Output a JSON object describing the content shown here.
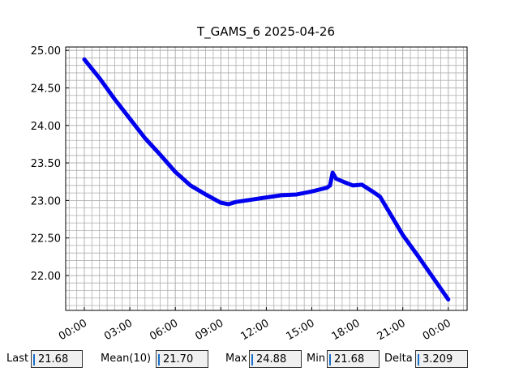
{
  "chart_data": {
    "type": "line",
    "title": "T_GAMS_6 2025-04-26",
    "x": [
      0,
      1,
      2,
      3,
      4,
      5,
      6,
      7,
      8,
      9,
      9.5,
      10,
      11,
      12,
      13,
      14,
      15,
      16,
      16.2,
      16.37,
      16.6,
      17.2,
      17.7,
      18.3,
      19,
      19.5,
      20,
      21,
      22,
      23,
      24
    ],
    "series": [
      {
        "name": "T_GAMS_6",
        "color": "#0000ee",
        "values": [
          24.88,
          24.63,
          24.35,
          24.09,
          23.83,
          23.61,
          23.38,
          23.2,
          23.08,
          22.97,
          22.95,
          22.98,
          23.01,
          23.04,
          23.07,
          23.08,
          23.12,
          23.17,
          23.2,
          23.37,
          23.29,
          23.24,
          23.2,
          23.21,
          23.12,
          23.05,
          22.88,
          22.54,
          22.26,
          21.97,
          21.68
        ]
      }
    ],
    "xlim": [
      -1.23,
      25.24
    ],
    "ylim": [
      21.535,
      25.045
    ],
    "xticks": [
      {
        "value": 0,
        "label": "00:00"
      },
      {
        "value": 3,
        "label": "03:00"
      },
      {
        "value": 6,
        "label": "06:00"
      },
      {
        "value": 9,
        "label": "09:00"
      },
      {
        "value": 12,
        "label": "12:00"
      },
      {
        "value": 15,
        "label": "15:00"
      },
      {
        "value": 18,
        "label": "18:00"
      },
      {
        "value": 21,
        "label": "21:00"
      },
      {
        "value": 24,
        "label": "00:00"
      }
    ],
    "yticks": [
      {
        "value": 22,
        "label": "22.00"
      },
      {
        "value": 22.5,
        "label": "22.50"
      },
      {
        "value": 23,
        "label": "23.00"
      },
      {
        "value": 23.5,
        "label": "23.50"
      },
      {
        "value": 24,
        "label": "24.00"
      },
      {
        "value": 24.5,
        "label": "24.50"
      },
      {
        "value": 25,
        "label": "25.00"
      }
    ],
    "grid": true,
    "minor_grid": true
  },
  "fields": [
    {
      "label": "Last",
      "value": "21.68"
    },
    {
      "label": "Mean(10)",
      "value": "21.70"
    },
    {
      "label": "Max",
      "value": "24.88"
    },
    {
      "label": "Min",
      "value": "21.68"
    },
    {
      "label": "Delta",
      "value": "3.209"
    }
  ]
}
